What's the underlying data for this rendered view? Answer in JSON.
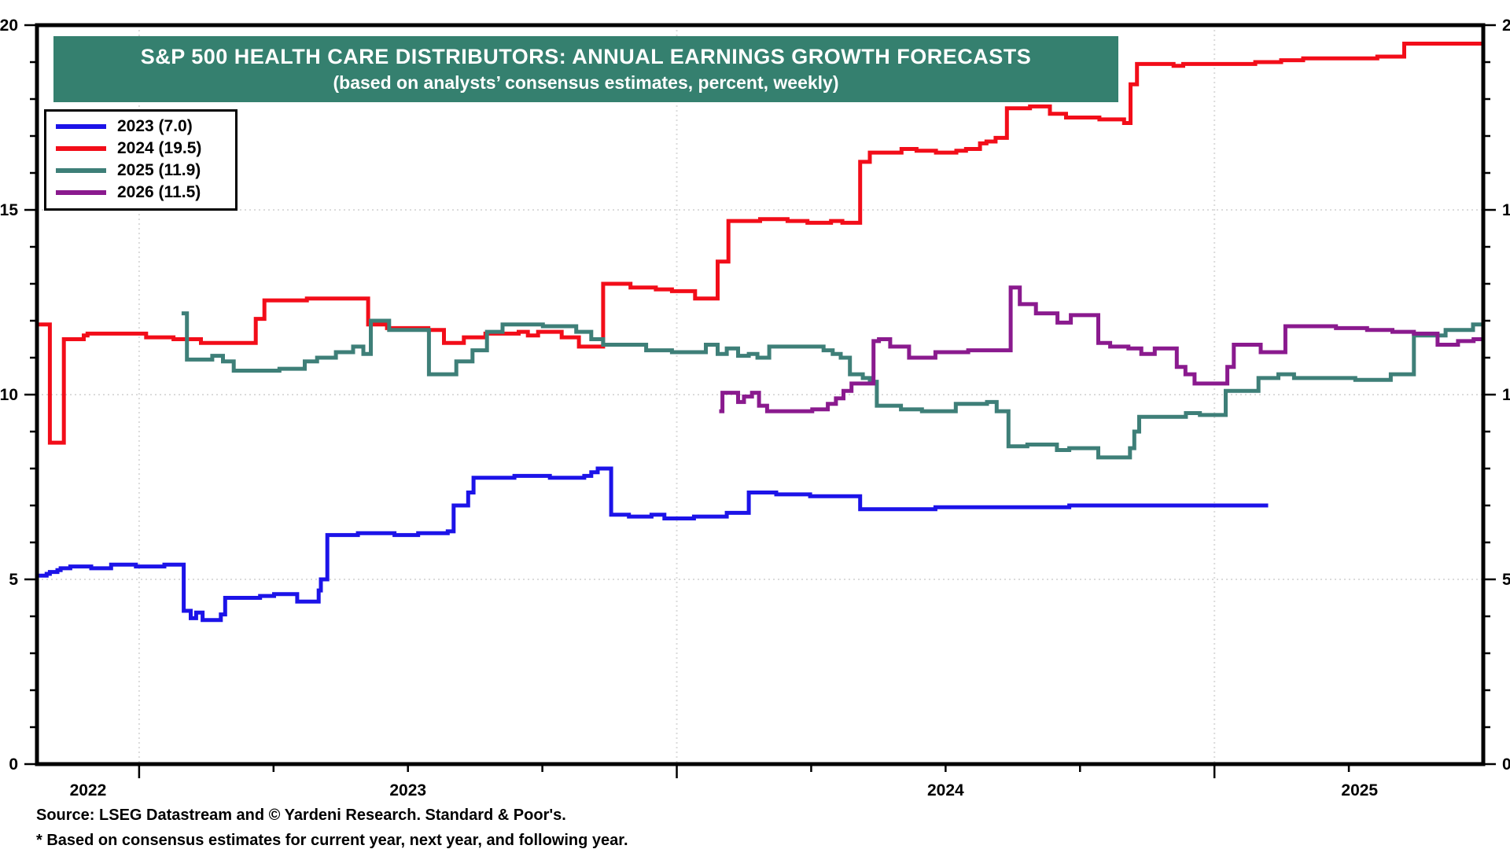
{
  "chart_data": {
    "type": "line",
    "title": "S&P 500 HEALTH CARE DISTRIBUTORS: ANNUAL EARNINGS GROWTH FORECASTS",
    "subtitle": "(based on analysts’ consensus estimates, percent, weekly)",
    "source_note": "Source: LSEG Datastream and © Yardeni Research. Standard & Poor's.",
    "footnote": "* Based on consensus estimates for current year, next year, and following year.",
    "legend_position": "top-left",
    "grid": "dotted",
    "ylim": [
      0,
      20
    ],
    "y_major_ticks": [
      0,
      5,
      10,
      15,
      20
    ],
    "y_minor_step": 1,
    "y_gridlines": [
      5,
      10,
      15
    ],
    "x_range": [
      2022.81,
      2025.5
    ],
    "x_minor_step": 0.25,
    "x_year_gridlines": [
      2023,
      2024,
      2025
    ],
    "x_labels": [
      {
        "text": "2022",
        "t": 2022.905
      },
      {
        "text": "2023",
        "t": 2023.5
      },
      {
        "text": "2024",
        "t": 2024.5
      },
      {
        "text": "2025",
        "t": 2025.27
      }
    ],
    "colors": {
      "banner_bg": "#35806F",
      "banner_text": "#FFFFFF",
      "grid": "#DBDBDB",
      "axis": "#000000"
    },
    "series": [
      {
        "name": "2023 (7.0)",
        "final_value": 7.0,
        "color": "#1C13E8",
        "points": [
          [
            2022.812,
            5.1
          ],
          [
            2022.828,
            5.15
          ],
          [
            2022.834,
            5.2
          ],
          [
            2022.848,
            5.25
          ],
          [
            2022.854,
            5.3
          ],
          [
            2022.872,
            5.35
          ],
          [
            2022.911,
            5.3
          ],
          [
            2022.948,
            5.4
          ],
          [
            2022.994,
            5.35
          ],
          [
            2023.047,
            5.4
          ],
          [
            2023.083,
            4.15
          ],
          [
            2023.096,
            3.95
          ],
          [
            2023.106,
            4.1
          ],
          [
            2023.118,
            3.9
          ],
          [
            2023.152,
            4.05
          ],
          [
            2023.16,
            4.5
          ],
          [
            2023.225,
            4.55
          ],
          [
            2023.251,
            4.6
          ],
          [
            2023.294,
            4.4
          ],
          [
            2023.334,
            4.7
          ],
          [
            2023.338,
            5.0
          ],
          [
            2023.35,
            6.2
          ],
          [
            2023.407,
            6.25
          ],
          [
            2023.475,
            6.2
          ],
          [
            2023.519,
            6.25
          ],
          [
            2023.574,
            6.3
          ],
          [
            2023.585,
            7.0
          ],
          [
            2023.612,
            7.35
          ],
          [
            2023.622,
            7.75
          ],
          [
            2023.698,
            7.8
          ],
          [
            2023.764,
            7.75
          ],
          [
            2023.828,
            7.8
          ],
          [
            2023.841,
            7.9
          ],
          [
            2023.853,
            8.0
          ],
          [
            2023.878,
            6.75
          ],
          [
            2023.911,
            6.7
          ],
          [
            2023.953,
            6.75
          ],
          [
            2023.977,
            6.65
          ],
          [
            2024.032,
            6.7
          ],
          [
            2024.093,
            6.8
          ],
          [
            2024.134,
            7.35
          ],
          [
            2024.185,
            7.3
          ],
          [
            2024.248,
            7.25
          ],
          [
            2024.341,
            6.9
          ],
          [
            2024.481,
            6.95
          ],
          [
            2024.73,
            7.0
          ],
          [
            2025.1,
            7.0
          ]
        ]
      },
      {
        "name": "2024 (19.5)",
        "final_value": 19.5,
        "color": "#F20D19",
        "points": [
          [
            2022.812,
            11.9
          ],
          [
            2022.834,
            8.7
          ],
          [
            2022.86,
            11.5
          ],
          [
            2022.897,
            11.6
          ],
          [
            2022.904,
            11.65
          ],
          [
            2023.013,
            11.55
          ],
          [
            2023.064,
            11.5
          ],
          [
            2023.115,
            11.4
          ],
          [
            2023.217,
            12.05
          ],
          [
            2023.233,
            12.55
          ],
          [
            2023.312,
            12.6
          ],
          [
            2023.426,
            11.9
          ],
          [
            2023.461,
            11.8
          ],
          [
            2023.538,
            11.75
          ],
          [
            2023.567,
            11.4
          ],
          [
            2023.604,
            11.55
          ],
          [
            2023.644,
            11.65
          ],
          [
            2023.706,
            11.7
          ],
          [
            2023.723,
            11.6
          ],
          [
            2023.742,
            11.7
          ],
          [
            2023.786,
            11.55
          ],
          [
            2023.818,
            11.3
          ],
          [
            2023.863,
            13.0
          ],
          [
            2023.914,
            12.9
          ],
          [
            2023.961,
            12.85
          ],
          [
            2023.991,
            12.8
          ],
          [
            2024.034,
            12.6
          ],
          [
            2024.076,
            13.6
          ],
          [
            2024.096,
            14.7
          ],
          [
            2024.155,
            14.75
          ],
          [
            2024.206,
            14.7
          ],
          [
            2024.243,
            14.65
          ],
          [
            2024.287,
            14.7
          ],
          [
            2024.308,
            14.65
          ],
          [
            2024.341,
            16.3
          ],
          [
            2024.359,
            16.55
          ],
          [
            2024.418,
            16.65
          ],
          [
            2024.446,
            16.6
          ],
          [
            2024.482,
            16.55
          ],
          [
            2024.52,
            16.6
          ],
          [
            2024.538,
            16.65
          ],
          [
            2024.564,
            16.8
          ],
          [
            2024.576,
            16.85
          ],
          [
            2024.593,
            16.95
          ],
          [
            2024.614,
            17.75
          ],
          [
            2024.657,
            17.8
          ],
          [
            2024.694,
            17.6
          ],
          [
            2024.724,
            17.5
          ],
          [
            2024.786,
            17.45
          ],
          [
            2024.832,
            17.35
          ],
          [
            2024.844,
            18.4
          ],
          [
            2024.856,
            18.95
          ],
          [
            2024.924,
            18.9
          ],
          [
            2024.942,
            18.95
          ],
          [
            2025.076,
            19.0
          ],
          [
            2025.124,
            19.05
          ],
          [
            2025.165,
            19.1
          ],
          [
            2025.303,
            19.15
          ],
          [
            2025.353,
            19.5
          ],
          [
            2025.499,
            19.5
          ]
        ]
      },
      {
        "name": "2025 (11.9)",
        "final_value": 11.9,
        "color": "#3E7F78",
        "points": [
          [
            2023.079,
            12.2
          ],
          [
            2023.089,
            10.95
          ],
          [
            2023.136,
            11.05
          ],
          [
            2023.156,
            10.9
          ],
          [
            2023.176,
            10.65
          ],
          [
            2023.261,
            10.7
          ],
          [
            2023.308,
            10.9
          ],
          [
            2023.331,
            11.0
          ],
          [
            2023.366,
            11.15
          ],
          [
            2023.398,
            11.3
          ],
          [
            2023.417,
            11.1
          ],
          [
            2023.431,
            12.0
          ],
          [
            2023.465,
            11.75
          ],
          [
            2023.539,
            10.55
          ],
          [
            2023.59,
            10.9
          ],
          [
            2023.62,
            11.2
          ],
          [
            2023.647,
            11.7
          ],
          [
            2023.676,
            11.9
          ],
          [
            2023.751,
            11.85
          ],
          [
            2023.813,
            11.7
          ],
          [
            2023.841,
            11.5
          ],
          [
            2023.863,
            11.35
          ],
          [
            2023.943,
            11.2
          ],
          [
            2023.991,
            11.15
          ],
          [
            2024.054,
            11.35
          ],
          [
            2024.076,
            11.1
          ],
          [
            2024.093,
            11.25
          ],
          [
            2024.114,
            11.05
          ],
          [
            2024.134,
            11.1
          ],
          [
            2024.15,
            11.0
          ],
          [
            2024.172,
            11.3
          ],
          [
            2024.273,
            11.2
          ],
          [
            2024.29,
            11.1
          ],
          [
            2024.305,
            11.0
          ],
          [
            2024.322,
            10.55
          ],
          [
            2024.346,
            10.45
          ],
          [
            2024.359,
            10.35
          ],
          [
            2024.372,
            9.7
          ],
          [
            2024.417,
            9.6
          ],
          [
            2024.456,
            9.55
          ],
          [
            2024.519,
            9.75
          ],
          [
            2024.577,
            9.8
          ],
          [
            2024.595,
            9.55
          ],
          [
            2024.617,
            8.6
          ],
          [
            2024.652,
            8.65
          ],
          [
            2024.707,
            8.5
          ],
          [
            2024.73,
            8.55
          ],
          [
            2024.784,
            8.3
          ],
          [
            2024.843,
            8.55
          ],
          [
            2024.851,
            9.0
          ],
          [
            2024.86,
            9.4
          ],
          [
            2024.947,
            9.5
          ],
          [
            2024.973,
            9.45
          ],
          [
            2025.021,
            10.1
          ],
          [
            2025.082,
            10.45
          ],
          [
            2025.119,
            10.55
          ],
          [
            2025.148,
            10.45
          ],
          [
            2025.262,
            10.4
          ],
          [
            2025.328,
            10.55
          ],
          [
            2025.371,
            11.6
          ],
          [
            2025.43,
            11.75
          ],
          [
            2025.481,
            11.9
          ],
          [
            2025.499,
            11.9
          ]
        ]
      },
      {
        "name": "2026 (11.5)",
        "final_value": 11.5,
        "color": "#8A1A8E",
        "points": [
          [
            2024.079,
            9.55
          ],
          [
            2024.085,
            10.05
          ],
          [
            2024.114,
            9.8
          ],
          [
            2024.125,
            9.95
          ],
          [
            2024.14,
            10.05
          ],
          [
            2024.153,
            9.7
          ],
          [
            2024.168,
            9.55
          ],
          [
            2024.252,
            9.6
          ],
          [
            2024.281,
            9.75
          ],
          [
            2024.296,
            9.9
          ],
          [
            2024.31,
            10.1
          ],
          [
            2024.325,
            10.3
          ],
          [
            2024.366,
            11.45
          ],
          [
            2024.376,
            11.5
          ],
          [
            2024.397,
            11.3
          ],
          [
            2024.432,
            11.0
          ],
          [
            2024.481,
            11.15
          ],
          [
            2024.542,
            11.2
          ],
          [
            2024.621,
            12.9
          ],
          [
            2024.638,
            12.45
          ],
          [
            2024.668,
            12.2
          ],
          [
            2024.708,
            11.95
          ],
          [
            2024.733,
            12.15
          ],
          [
            2024.784,
            11.4
          ],
          [
            2024.806,
            11.3
          ],
          [
            2024.84,
            11.25
          ],
          [
            2024.864,
            11.1
          ],
          [
            2024.889,
            11.25
          ],
          [
            2024.93,
            10.75
          ],
          [
            2024.946,
            10.55
          ],
          [
            2024.963,
            10.3
          ],
          [
            2025.024,
            10.75
          ],
          [
            2025.036,
            11.35
          ],
          [
            2025.086,
            11.15
          ],
          [
            2025.132,
            11.85
          ],
          [
            2025.226,
            11.8
          ],
          [
            2025.284,
            11.75
          ],
          [
            2025.331,
            11.7
          ],
          [
            2025.371,
            11.65
          ],
          [
            2025.415,
            11.35
          ],
          [
            2025.453,
            11.45
          ],
          [
            2025.482,
            11.5
          ],
          [
            2025.499,
            11.5
          ]
        ]
      }
    ]
  }
}
